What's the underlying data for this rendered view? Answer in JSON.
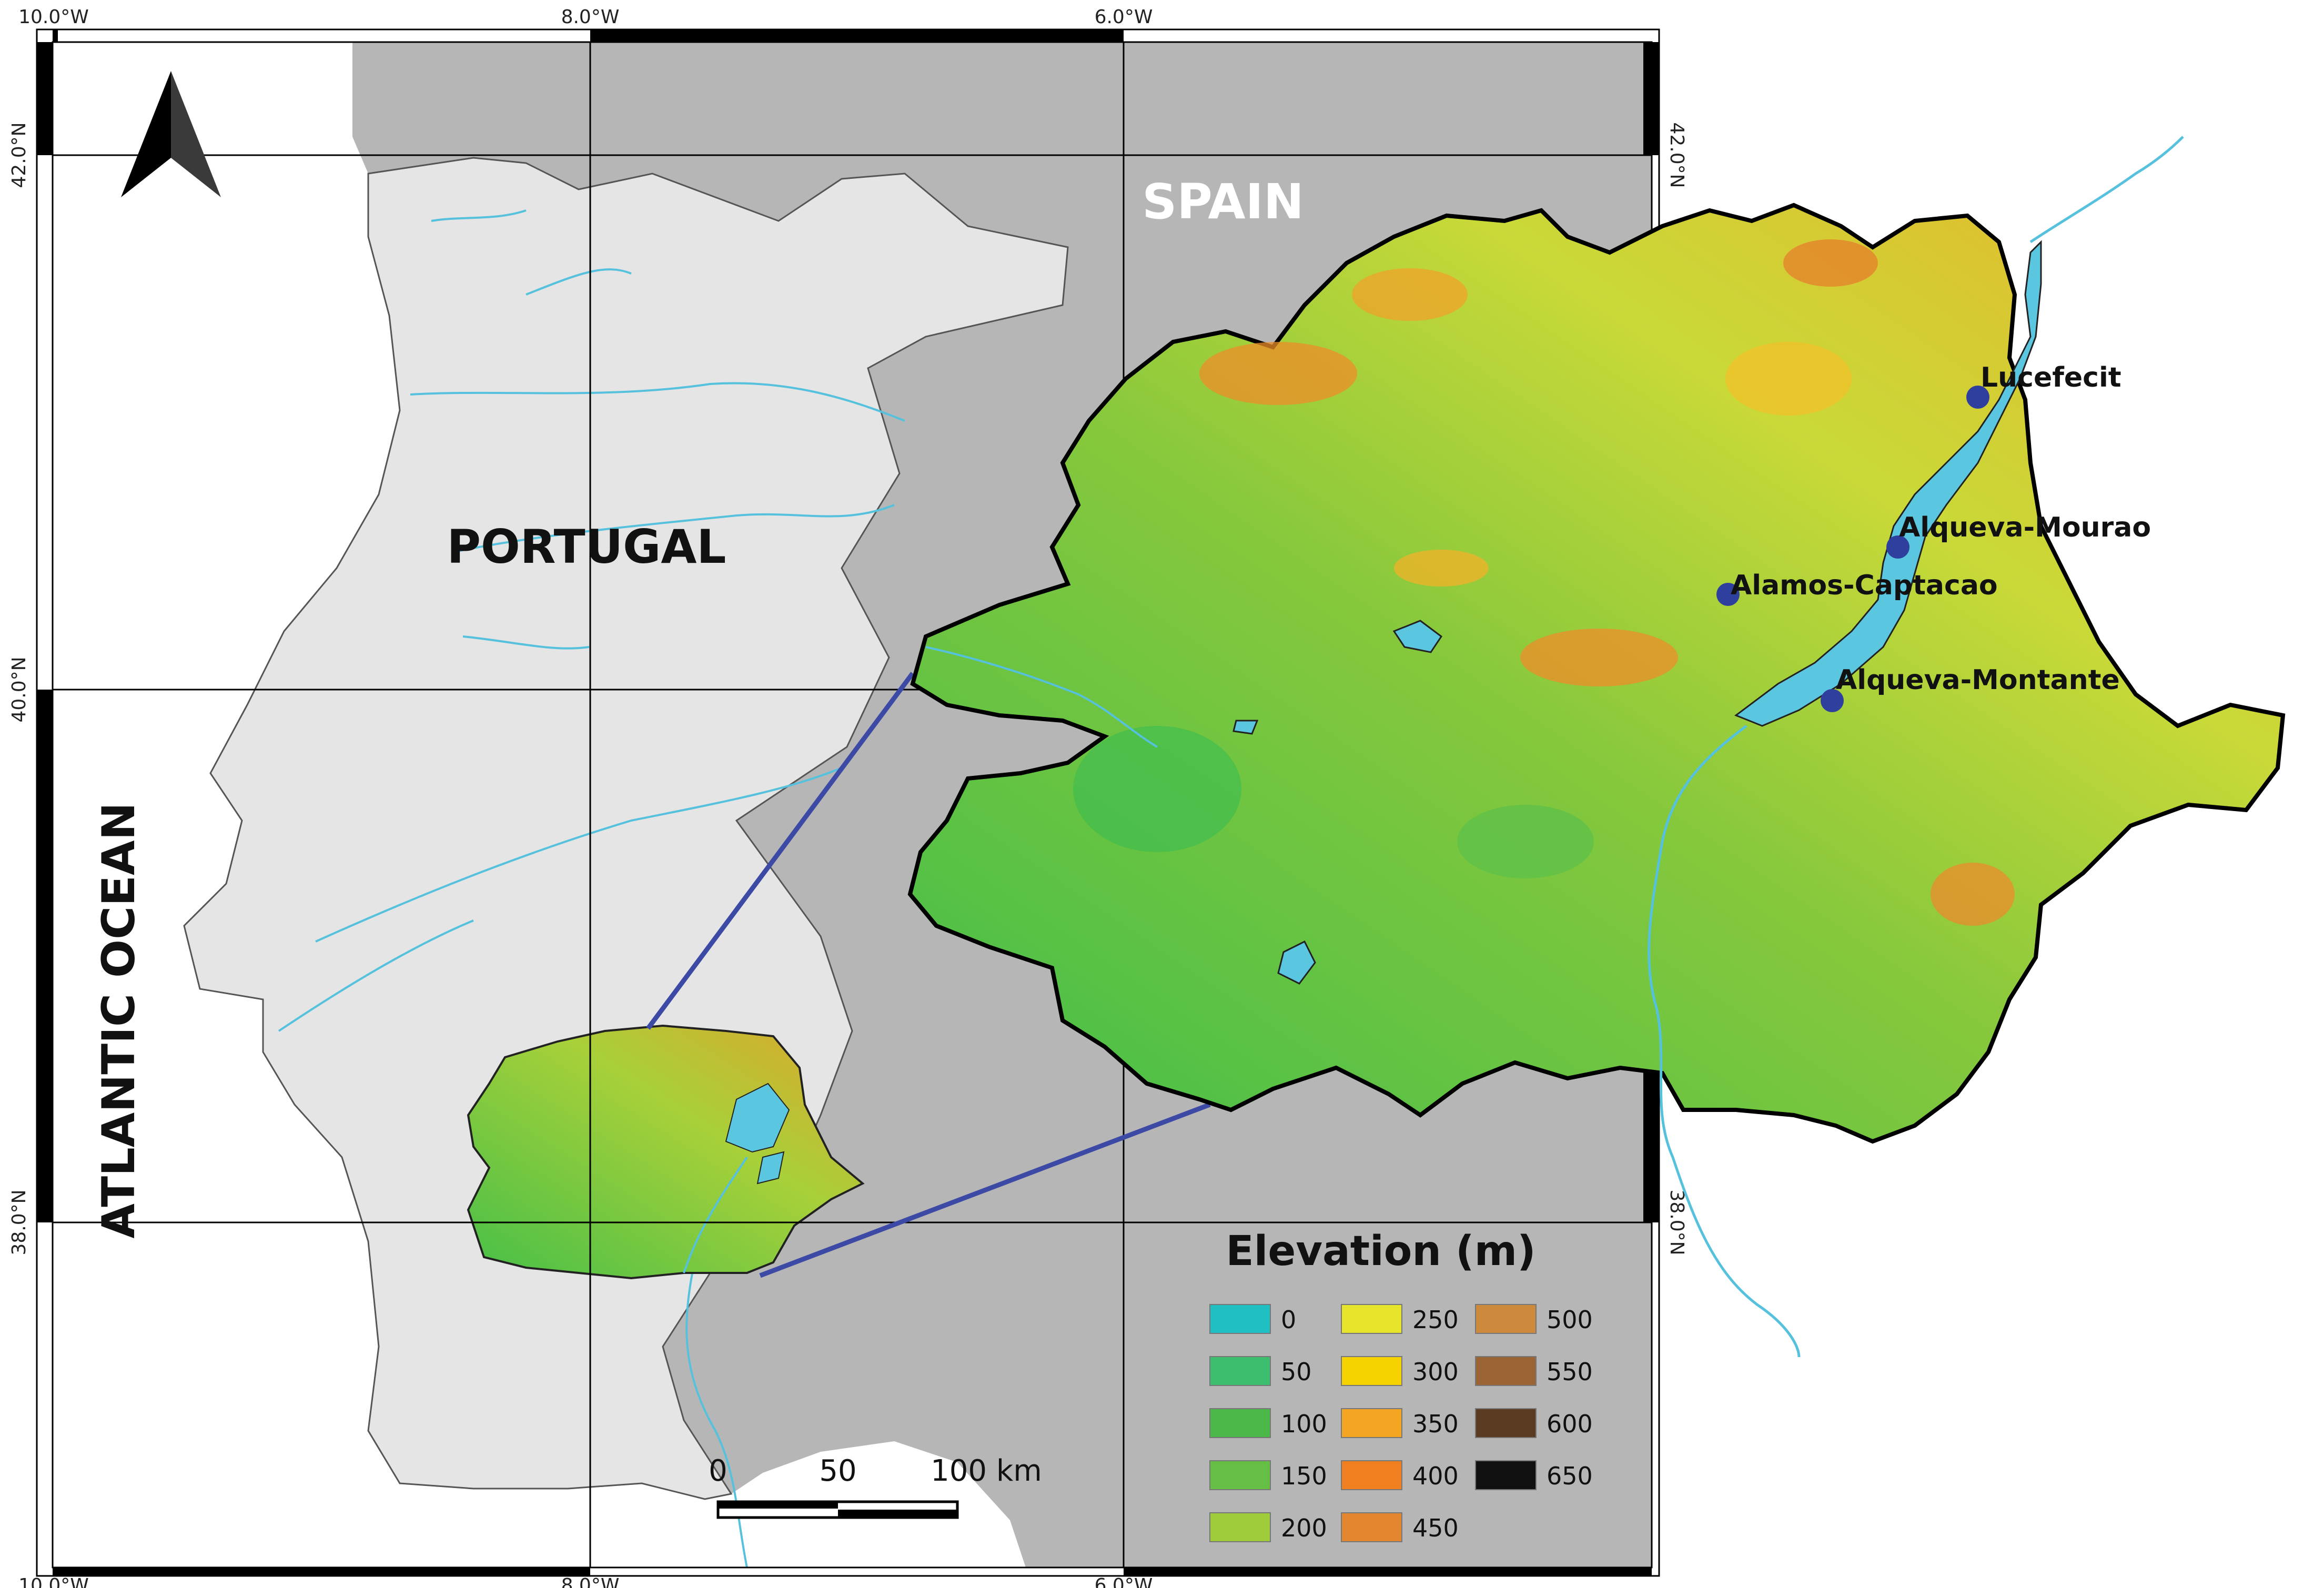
{
  "coordinates": {
    "lon_labels": [
      "10.0°W",
      "8.0°W",
      "6.0°W"
    ],
    "lat_labels": [
      "42.0°N",
      "40.0°N",
      "38.0°N"
    ]
  },
  "countries": {
    "portugal": "PORTUGAL",
    "spain": "SPAIN",
    "ocean": "ATLANTIC OCEAN"
  },
  "stations": [
    {
      "name": "Lucefecit"
    },
    {
      "name": "Alqueva-Mourao"
    },
    {
      "name": "Alamos-Captacao"
    },
    {
      "name": "Alqueva-Montante"
    }
  ],
  "legend": {
    "title": "Elevation (m)",
    "items": [
      {
        "label": "0",
        "color": "#1fbfc4"
      },
      {
        "label": "50",
        "color": "#3dbd6e"
      },
      {
        "label": "100",
        "color": "#4cb84a"
      },
      {
        "label": "150",
        "color": "#66bf45"
      },
      {
        "label": "200",
        "color": "#9fcc3a"
      },
      {
        "label": "250",
        "color": "#e6e52b"
      },
      {
        "label": "300",
        "color": "#f5d200"
      },
      {
        "label": "350",
        "color": "#f4a622"
      },
      {
        "label": "400",
        "color": "#ef7f1f"
      },
      {
        "label": "450",
        "color": "#e38630"
      },
      {
        "label": "500",
        "color": "#cd8a3c"
      },
      {
        "label": "550",
        "color": "#9b6434"
      },
      {
        "label": "600",
        "color": "#5a3b22"
      },
      {
        "label": "650",
        "color": "#111111"
      }
    ]
  },
  "scale_bar": {
    "labels": [
      "0",
      "50",
      "100 km"
    ]
  },
  "colors": {
    "ocean": "#ffffff",
    "portugal": "#e5e5e5",
    "spain": "#b6b6b6",
    "river": "#56c1dc",
    "inset_line": "#3c4aa6",
    "station": "#2f3f9d"
  }
}
